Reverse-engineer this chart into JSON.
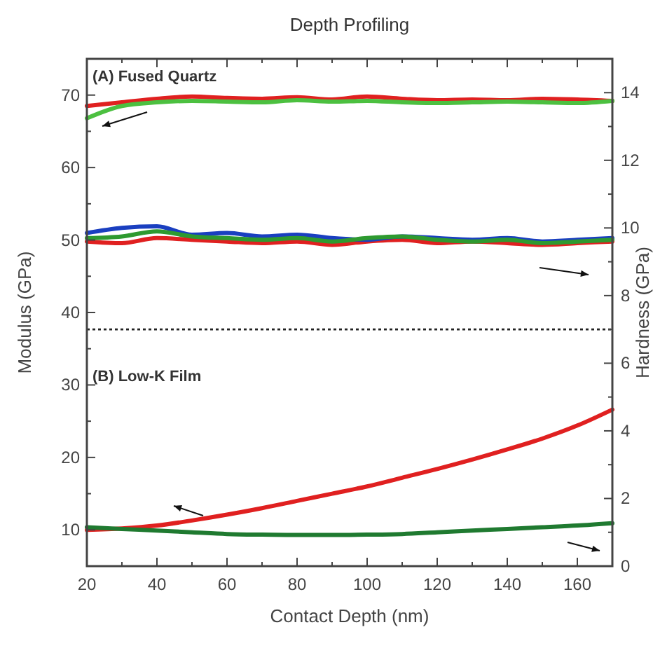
{
  "chart_data": {
    "type": "line",
    "title": "Depth Profiling",
    "xlabel": "Contact Depth (nm)",
    "ylabel": "Modulus (GPa)",
    "y2label": "Hardness (GPa)",
    "xlim": [
      20,
      170
    ],
    "xticks": [
      20,
      {
        "value": 30,
        "label": null
      },
      40,
      {
        "value": 50,
        "label": null
      },
      60,
      {
        "value": 70,
        "label": null
      },
      80,
      {
        "value": 90,
        "label": null
      },
      100,
      {
        "value": 110,
        "label": null
      },
      120,
      {
        "value": 130,
        "label": null
      },
      140,
      {
        "value": 150,
        "label": null
      },
      160
    ],
    "ylim": [
      5,
      75
    ],
    "yticks": [
      10,
      {
        "value": 15,
        "label": null
      },
      20,
      {
        "value": 25,
        "label": null
      },
      30,
      {
        "value": 35,
        "label": null
      },
      40,
      {
        "value": 45,
        "label": null
      },
      50,
      {
        "value": 55,
        "label": null
      },
      60,
      {
        "value": 65,
        "label": null
      },
      70
    ],
    "y2lim": [
      0,
      15
    ],
    "y2ticks": [
      0,
      {
        "value": 1,
        "label": null
      },
      2,
      {
        "value": 3,
        "label": null
      },
      4,
      {
        "value": 5,
        "label": null
      },
      6,
      {
        "value": 7,
        "label": null
      },
      8,
      {
        "value": 9,
        "label": null
      },
      10,
      {
        "value": 11,
        "label": null
      },
      12,
      {
        "value": 13,
        "label": null
      },
      14
    ],
    "x": [
      20,
      30,
      40,
      50,
      60,
      70,
      80,
      90,
      100,
      110,
      120,
      130,
      140,
      150,
      160,
      170
    ],
    "series": [
      {
        "color": "#e02020",
        "values": [
          9.6,
          9.55,
          9.7,
          9.65,
          9.6,
          9.55,
          9.6,
          9.5,
          9.6,
          9.65,
          9.55,
          9.6,
          9.55,
          9.5,
          9.55,
          9.6
        ],
        "axis": "y2"
      },
      {
        "color": "#1a3fc0",
        "values": [
          9.85,
          10.0,
          10.05,
          9.8,
          9.85,
          9.75,
          9.8,
          9.7,
          9.65,
          9.75,
          9.7,
          9.65,
          9.7,
          9.6,
          9.65,
          9.7
        ],
        "axis": "y2"
      },
      {
        "color": "#2e9a30",
        "values": [
          9.7,
          9.75,
          9.9,
          9.75,
          9.7,
          9.65,
          9.7,
          9.6,
          9.7,
          9.75,
          9.65,
          9.6,
          9.65,
          9.55,
          9.6,
          9.65
        ],
        "axis": "y2"
      },
      {
        "color": "#e02020",
        "values": [
          68.5,
          69,
          69.5,
          69.8,
          69.6,
          69.5,
          69.7,
          69.4,
          69.8,
          69.5,
          69.3,
          69.4,
          69.3,
          69.5,
          69.4,
          69.2
        ]
      },
      {
        "color": "#4cc040",
        "values": [
          66.8,
          68.5,
          69,
          69.2,
          69.1,
          69,
          69.3,
          69.1,
          69.2,
          69,
          68.9,
          69,
          69.1,
          69,
          68.9,
          69.2
        ]
      },
      {
        "color": "#e02020",
        "values": [
          10,
          10.2,
          10.6,
          11.3,
          12.1,
          13,
          14,
          15,
          16,
          17.2,
          18.4,
          19.7,
          21.1,
          22.6,
          24.4,
          26.6
        ]
      },
      {
        "color": "#1f7a30",
        "values": [
          1.15,
          1.1,
          1.05,
          1.0,
          0.95,
          0.93,
          0.92,
          0.92,
          0.93,
          0.95,
          1.0,
          1.05,
          1.1,
          1.15,
          1.2,
          1.27
        ],
        "axis": "y2"
      }
    ],
    "ref_lines": [
      {
        "axis": "y2",
        "value": 7,
        "line_style": "dotted",
        "color": "#222222"
      }
    ],
    "annotations": [
      "(A) Fused Quartz",
      "(B) Low-K Film"
    ]
  }
}
